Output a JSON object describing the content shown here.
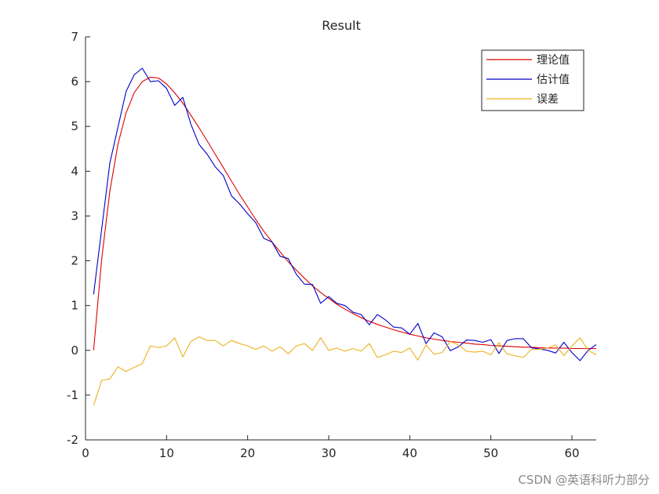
{
  "chart_data": {
    "type": "line",
    "title": "Result",
    "xlabel": "",
    "ylabel": "",
    "xlim": [
      0,
      63
    ],
    "ylim": [
      -2,
      7
    ],
    "xticks": [
      0,
      10,
      20,
      30,
      40,
      50,
      60
    ],
    "yticks": [
      -2,
      -1,
      0,
      1,
      2,
      3,
      4,
      5,
      6,
      7
    ],
    "legend_position": "top-right",
    "grid": false,
    "x": [
      1,
      2,
      3,
      4,
      5,
      6,
      7,
      8,
      9,
      10,
      11,
      12,
      13,
      14,
      15,
      16,
      17,
      18,
      19,
      20,
      21,
      22,
      23,
      24,
      25,
      26,
      27,
      28,
      29,
      30,
      31,
      32,
      33,
      34,
      35,
      36,
      37,
      38,
      39,
      40,
      41,
      42,
      43,
      44,
      45,
      46,
      47,
      48,
      49,
      50,
      51,
      52,
      53,
      54,
      55,
      56,
      57,
      58,
      59,
      60,
      61,
      62,
      63
    ],
    "series": [
      {
        "name": "理论值",
        "color": "#e00000",
        "values": [
          0.0,
          2.05,
          3.55,
          4.6,
          5.3,
          5.75,
          6.0,
          6.1,
          6.08,
          5.95,
          5.75,
          5.52,
          5.25,
          4.97,
          4.68,
          4.38,
          4.08,
          3.78,
          3.48,
          3.2,
          2.92,
          2.66,
          2.42,
          2.2,
          1.98,
          1.79,
          1.61,
          1.44,
          1.29,
          1.16,
          1.03,
          0.92,
          0.82,
          0.73,
          0.65,
          0.58,
          0.52,
          0.46,
          0.41,
          0.36,
          0.32,
          0.28,
          0.25,
          0.22,
          0.2,
          0.18,
          0.16,
          0.14,
          0.13,
          0.11,
          0.1,
          0.09,
          0.08,
          0.07,
          0.07,
          0.06,
          0.05,
          0.05,
          0.05,
          0.04,
          0.04,
          0.04,
          0.04
        ]
      },
      {
        "name": "估计值",
        "color": "#0000c8",
        "values": [
          1.25,
          2.72,
          4.18,
          4.98,
          5.78,
          6.15,
          6.3,
          6.0,
          6.02,
          5.85,
          5.47,
          5.65,
          5.05,
          4.6,
          4.38,
          4.1,
          3.9,
          3.45,
          3.27,
          3.05,
          2.85,
          2.5,
          2.42,
          2.1,
          2.05,
          1.7,
          1.48,
          1.47,
          1.05,
          1.2,
          1.05,
          1.0,
          0.85,
          0.8,
          0.57,
          0.8,
          0.68,
          0.52,
          0.5,
          0.36,
          0.6,
          0.15,
          0.39,
          0.3,
          -0.01,
          0.08,
          0.23,
          0.22,
          0.18,
          0.24,
          -0.07,
          0.22,
          0.26,
          0.26,
          0.06,
          0.03,
          0.0,
          -0.06,
          0.18,
          -0.05,
          -0.23,
          0.0,
          0.13
        ]
      },
      {
        "name": "误差",
        "color": "#edb120",
        "values": [
          -1.23,
          -0.67,
          -0.64,
          -0.37,
          -0.47,
          -0.38,
          -0.3,
          0.1,
          0.06,
          0.1,
          0.28,
          -0.15,
          0.2,
          0.3,
          0.22,
          0.22,
          0.1,
          0.22,
          0.15,
          0.1,
          0.02,
          0.1,
          -0.02,
          0.08,
          -0.08,
          0.1,
          0.15,
          0.0,
          0.28,
          0.0,
          0.05,
          -0.02,
          0.04,
          -0.02,
          0.15,
          -0.16,
          -0.1,
          -0.02,
          -0.05,
          0.05,
          -0.22,
          0.12,
          -0.09,
          -0.05,
          0.2,
          0.12,
          -0.02,
          -0.04,
          -0.02,
          -0.1,
          0.17,
          -0.08,
          -0.12,
          -0.16,
          0.02,
          0.02,
          0.05,
          0.12,
          -0.12,
          0.1,
          0.28,
          0.0,
          -0.1
        ]
      }
    ]
  },
  "watermark": "CSDN @英语科听力部分"
}
